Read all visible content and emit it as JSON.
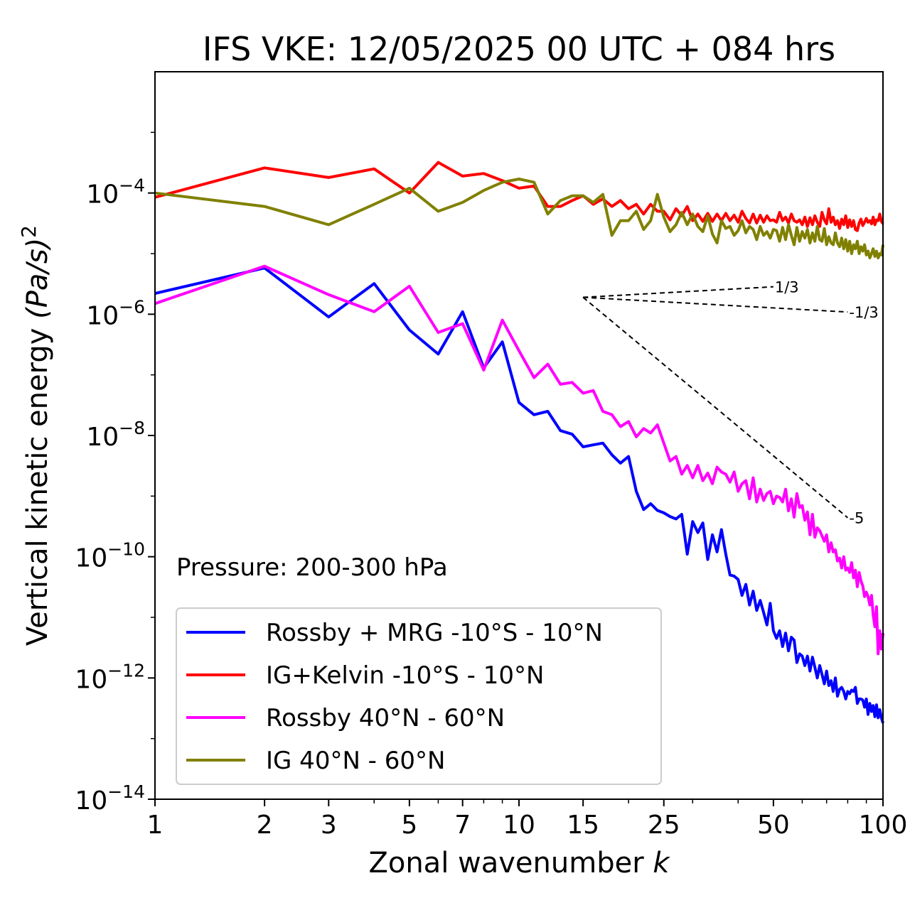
{
  "chart_data": {
    "type": "line",
    "title": "IFS VKE: 12/05/2025 00 UTC + 084 hrs",
    "xlabel": "Zonal wavenumber",
    "xlabel_var": "k",
    "ylabel": "Vertical kinetic energy",
    "ylabel_unit": "(Pa/s)",
    "ylabel_exp": "2",
    "x_scale": "log",
    "y_scale": "log",
    "xlim": [
      1,
      100
    ],
    "ylim": [
      1e-14,
      0.01
    ],
    "x_ticks": [
      1,
      2,
      3,
      5,
      7,
      10,
      15,
      25,
      50,
      100
    ],
    "y_ticks": [
      -14,
      -12,
      -10,
      -8,
      -6,
      -4
    ],
    "y_tick_base": "10",
    "grid": false,
    "legend_position": "bottom-left",
    "annotation": "Pressure: 200-300 hPa",
    "reference_slopes": [
      {
        "label": "1/3",
        "slope": 0.3333,
        "x_start": 15,
        "x_end": 50,
        "y_start": 1.9e-06
      },
      {
        "label": "-1/3",
        "slope": -0.3333,
        "x_start": 15,
        "x_end": 80,
        "y_start": 1.9e-06
      },
      {
        "label": "-5",
        "slope": -5,
        "x_start": 15,
        "x_end": 80,
        "y_start": 1.9e-06
      }
    ],
    "series": [
      {
        "name": "Rossby + MRG -10°S - 10°N",
        "color": "#0000ff",
        "values": [
          2.2e-06,
          5.8e-06,
          9e-07,
          3.2e-06,
          5.5e-07,
          2.2e-07,
          1.1e-06,
          1.3e-07,
          3.5e-07,
          3.5e-08,
          2.2e-08,
          2.5e-08,
          1.2e-08,
          1.05e-08,
          6.5e-09,
          7e-09,
          7.5e-09,
          4.8e-09,
          3.5e-09,
          4.5e-09,
          1.2e-09,
          6e-10,
          7.5e-10,
          5.8e-10,
          5.3e-10,
          4.6e-10,
          4.2e-10,
          5e-10,
          1.1e-10,
          3.8e-10,
          2.5e-10,
          3.6e-10,
          9e-11,
          2.3e-10,
          1.2e-10,
          2.8e-10,
          1.1e-10,
          5e-11,
          4.8e-11,
          4.2e-11,
          2.3e-11,
          3.5e-11,
          1.6e-11,
          2.7e-11,
          1.3e-11,
          1.9e-11,
          1.2e-11,
          7.5e-12,
          1.7e-11,
          6e-12,
          4.5e-12,
          6e-12,
          3.3e-12,
          5.5e-12,
          2.8e-12,
          4.7e-12,
          4.2e-12,
          1.8e-12,
          2.5e-12,
          2.3e-12,
          1.6e-12,
          2.3e-12,
          1.3e-12,
          2.2e-12,
          1.5e-12,
          1e-12,
          1.6e-12,
          1.15e-12,
          8e-13,
          1.3e-12,
          7.5e-13,
          9e-13,
          6e-13,
          1e-12,
          5e-13,
          6.5e-13,
          7e-13,
          6e-13,
          4.5e-13,
          6e-13,
          5.5e-13,
          6.3e-13,
          6e-13,
          7e-13,
          3.8e-13,
          4.5e-13,
          4.5e-13,
          4.3e-13,
          3.3e-13,
          4.5e-13,
          2.5e-13,
          3.8e-13,
          2.8e-13,
          3.5e-13,
          2.3e-13,
          3.6e-13,
          2.2e-13,
          3e-13,
          2.2e-13,
          1.8e-13
        ]
      },
      {
        "name": "IG+Kelvin -10°S - 10°N",
        "color": "#ff0000",
        "values": [
          8.5e-05,
          0.00026,
          0.00018,
          0.00025,
          0.0001,
          0.00032,
          0.00019,
          0.00021,
          0.00016,
          0.00012,
          0.00013,
          6e-05,
          6e-05,
          7.5e-05,
          9e-05,
          6.5e-05,
          8e-05,
          6e-05,
          7.5e-05,
          5.5e-05,
          6.5e-05,
          4.5e-05,
          6.5e-05,
          5e-05,
          5e-05,
          3.6e-05,
          5.5e-05,
          4.2e-05,
          6e-05,
          3.5e-05,
          4.5e-05,
          3.4e-05,
          4.6e-05,
          3.4e-05,
          4.5e-05,
          3.5e-05,
          4.6e-05,
          3.5e-05,
          4.3e-05,
          3.3e-05,
          5e-05,
          3.8e-05,
          3.2e-05,
          4.5e-05,
          3.2e-05,
          4.3e-05,
          3.3e-05,
          4.2e-05,
          3.5e-05,
          3.6e-05,
          3.3e-05,
          4.8e-05,
          3.5e-05,
          4e-05,
          3.2e-05,
          4.5e-05,
          3.5e-05,
          3.3e-05,
          3.6e-05,
          3e-05,
          4e-05,
          2.8e-05,
          3.9e-05,
          3e-05,
          4.2e-05,
          3.3e-05,
          2.8e-05,
          4.8e-05,
          3.6e-05,
          3.1e-05,
          5.5e-05,
          3.3e-05,
          4e-05,
          3e-05,
          3.5e-05,
          2.6e-05,
          3.7e-05,
          3e-05,
          4.2e-05,
          2.7e-05,
          3.6e-05,
          2.8e-05,
          3.5e-05,
          2.5e-05,
          2.4e-05,
          3.2e-05,
          3.7e-05,
          2.9e-05,
          3.3e-05,
          3.8e-05,
          3.3e-05,
          3.5e-05,
          3.1e-05,
          4e-05,
          3e-05,
          3.6e-05,
          3.5e-05,
          4.5e-05,
          3.4e-05,
          3.1e-05
        ]
      },
      {
        "name": "Rossby 40°N - 60°N",
        "color": "#ff00ff",
        "values": [
          1.5e-06,
          6.2e-06,
          2.1e-06,
          1.1e-06,
          2.9e-06,
          5e-07,
          7e-07,
          1.2e-07,
          8e-07,
          2.5e-07,
          9e-08,
          1.5e-07,
          7e-08,
          7.5e-08,
          5e-08,
          5.5e-08,
          2.5e-08,
          2.2e-08,
          1.4e-08,
          1.7e-08,
          9.5e-09,
          1.3e-08,
          1.1e-08,
          1.5e-08,
          7.5e-09,
          3.8e-09,
          4.5e-09,
          2.3e-09,
          3.2e-09,
          2e-09,
          3.2e-09,
          1.8e-09,
          2.4e-09,
          1.6e-09,
          3e-09,
          2.5e-09,
          2.3e-09,
          1.7e-09,
          2.5e-09,
          1.2e-09,
          1.6e-09,
          1.8e-09,
          9e-10,
          2e-09,
          8e-10,
          1.3e-09,
          8.5e-10,
          1.1e-09,
          1.2e-09,
          7.5e-10,
          1e-09,
          9.5e-10,
          8e-10,
          1.3e-09,
          5.7e-10,
          9e-10,
          4.5e-10,
          1.1e-09,
          6.5e-10,
          7e-10,
          4e-10,
          5.5e-10,
          2.3e-10,
          5e-10,
          2.1e-10,
          3e-10,
          2.7e-10,
          2.2e-10,
          1.8e-10,
          2.3e-10,
          1.2e-10,
          1.7e-10,
          1.2e-10,
          1.3e-10,
          8.5e-11,
          9.5e-11,
          6.5e-11,
          1e-10,
          6e-11,
          6.5e-11,
          5.5e-11,
          8e-11,
          4.5e-11,
          6e-11,
          3.2e-11,
          5.5e-11,
          4e-11,
          3.3e-11,
          2.2e-11,
          2.6e-11,
          2.2e-11,
          1.6e-11,
          2.3e-11,
          1.1e-11,
          7e-12,
          1.5e-11,
          2.5e-12,
          6e-12,
          3e-12,
          5.5e-12
        ]
      },
      {
        "name": "IG 40°N - 60°N",
        "color": "#808000",
        "values": [
          0.0001,
          6e-05,
          3e-05,
          6.5e-05,
          0.00012,
          5e-05,
          7e-05,
          0.00011,
          0.00015,
          0.00017,
          0.00015,
          4.5e-05,
          7.5e-05,
          9e-05,
          9e-05,
          7e-05,
          9.5e-05,
          2e-05,
          3.5e-05,
          3.5e-05,
          5e-05,
          2.5e-05,
          3.5e-05,
          9.5e-05,
          4e-05,
          2.3e-05,
          3e-05,
          4.8e-05,
          3e-05,
          4.5e-05,
          2.8e-05,
          2.3e-05,
          4.2e-05,
          2.1e-05,
          1.5e-05,
          3.5e-05,
          2.6e-05,
          2.8e-05,
          2e-05,
          2.4e-05,
          3.5e-05,
          2.2e-05,
          2.8e-05,
          2.5e-05,
          1.7e-05,
          2.8e-05,
          2e-05,
          2.3e-05,
          1.8e-05,
          2.5e-05,
          2.4e-05,
          1.6e-05,
          2.7e-05,
          1.7e-05,
          3e-05,
          2e-05,
          1.4e-05,
          2.7e-05,
          1.6e-05,
          2.3e-05,
          1.8e-05,
          2.5e-05,
          1.5e-05,
          2.2e-05,
          1.6e-05,
          2.8e-05,
          1.7e-05,
          1.6e-05,
          2.6e-05,
          1.4e-05,
          1.9e-05,
          1.5e-05,
          1.4e-05,
          2.2e-05,
          1.5e-05,
          1.3e-05,
          1.8e-05,
          1.2e-05,
          1.7e-05,
          1.1e-05,
          1.6e-05,
          1e-05,
          1.4e-05,
          1.2e-05,
          1.6e-05,
          1e-05,
          1.3e-05,
          1.1e-05,
          1.4e-05,
          9.5e-06,
          1.1e-05,
          8.5e-06,
          1e-05,
          1.2e-05,
          9e-06,
          1.1e-05,
          8.5e-06,
          1e-05,
          9.5e-06,
          1.4e-05
        ]
      }
    ]
  }
}
